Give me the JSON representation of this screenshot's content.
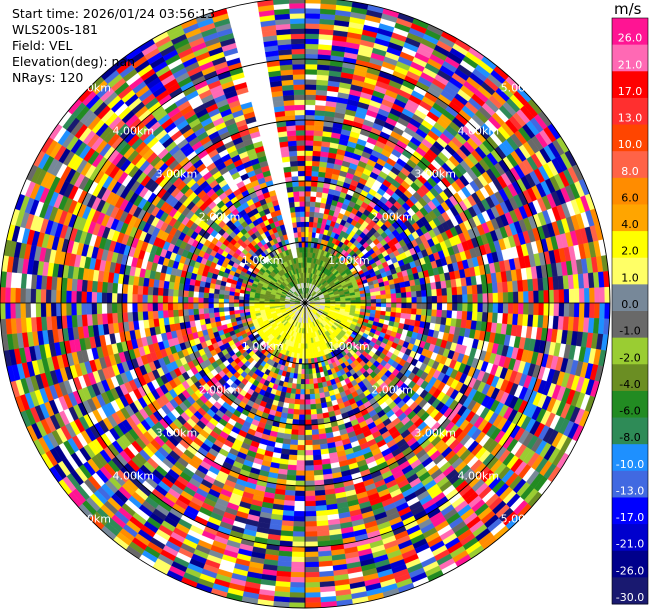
{
  "header": {
    "start_time": "Start time: 2026/01/24 03:56:13",
    "instrument": "WLS200s-181",
    "field": "Field: VEL",
    "elevation": "Elevation(deg): nan",
    "nrays": "NRays: 120"
  },
  "colorbar": {
    "unit": "m/s",
    "labels": [
      "26.0",
      "21.0",
      "17.0",
      "13.0",
      "10.0",
      "8.0",
      "6.0",
      "4.0",
      "2.0",
      "1.0",
      "0.0",
      "-1.0",
      "-2.0",
      "-4.0",
      "-6.0",
      "-8.0",
      "-10.0",
      "-13.0",
      "-17.0",
      "-21.0",
      "-26.0",
      "-30.0"
    ],
    "colors": [
      "#ff1493",
      "#ff69b4",
      "#ff0000",
      "#ff2f2f",
      "#ff4500",
      "#ff6347",
      "#ff8c00",
      "#ffa500",
      "#ffff00",
      "#ffff66",
      "#778899",
      "#696969",
      "#9acd32",
      "#6b8e23",
      "#228b22",
      "#2e8b57",
      "#1e90ff",
      "#4169e1",
      "#0000ff",
      "#0000cd",
      "#00008b",
      "#191970"
    ]
  },
  "chart_data": {
    "type": "polar_ppi",
    "field": "VEL",
    "units": "m/s",
    "nrays": 120,
    "range_rings_km": [
      1,
      2,
      3,
      4,
      5
    ],
    "range_ring_labels": [
      "1.00km",
      "2.00km",
      "3.00km",
      "4.00km",
      "5.00km"
    ],
    "max_range_km": 5.0,
    "colorbar_range": [
      -30.0,
      26.0
    ],
    "near_field": "low velocities within ~1 km (green -1 to -6 m/s north side, yellow 1 to 4 m/s south side)",
    "far_field": "noisy velocities across full colour scale",
    "blocked_sector_deg": [
      -16,
      -10
    ]
  }
}
